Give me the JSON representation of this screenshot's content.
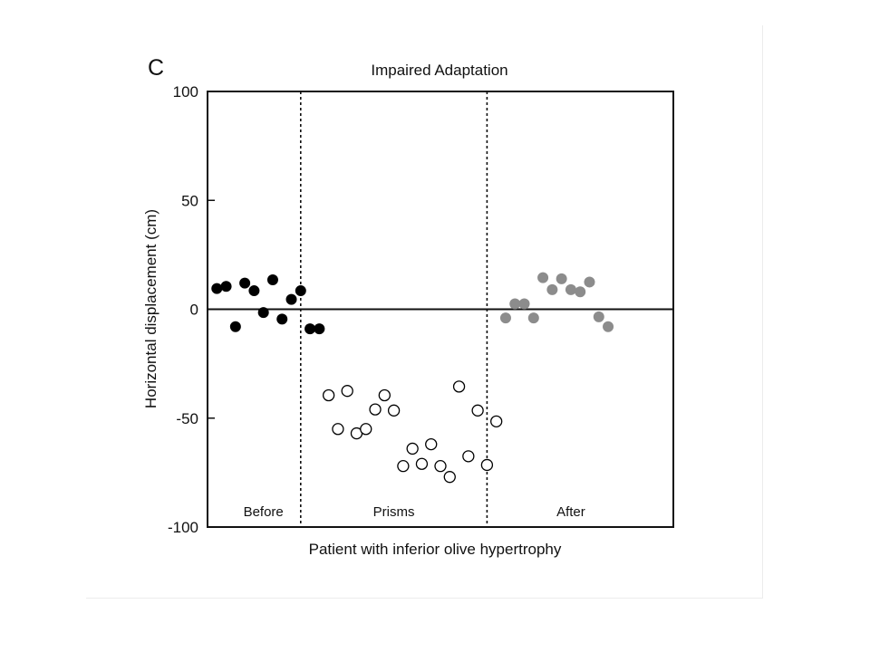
{
  "figure": {
    "panel_letter": "C"
  },
  "chart_data": {
    "type": "scatter",
    "title": "Impaired Adaptation",
    "xlabel": "Patient with inferior olive hypertrophy",
    "ylabel": "Horizontal displacement (cm)",
    "ylim": [
      -100,
      100
    ],
    "yticks": [
      100,
      50,
      0,
      -50,
      -100
    ],
    "ytick_labels": [
      "100",
      "50",
      "0",
      "-50",
      "-100"
    ],
    "xlim": [
      0,
      50
    ],
    "grid": false,
    "reference_line_y": 0,
    "phase_dividers_x": [
      10,
      30
    ],
    "phases": [
      {
        "label": "Before",
        "x_center": 6
      },
      {
        "label": "Prisms",
        "x_center": 20
      },
      {
        "label": "After",
        "x_center": 39
      }
    ],
    "series": [
      {
        "marker": "filled",
        "color": "#000000",
        "points": [
          {
            "trial": 1,
            "y": 9.5
          },
          {
            "trial": 2,
            "y": 10.5
          },
          {
            "trial": 3,
            "y": -8
          },
          {
            "trial": 4,
            "y": 12
          },
          {
            "trial": 5,
            "y": 8.5
          },
          {
            "trial": 6,
            "y": -1.5
          },
          {
            "trial": 7,
            "y": 13.5
          },
          {
            "trial": 8,
            "y": -4.5
          },
          {
            "trial": 9,
            "y": 4.5
          },
          {
            "trial": 10,
            "y": 8.5
          },
          {
            "trial": 11,
            "y": -9
          },
          {
            "trial": 12,
            "y": -9
          }
        ]
      },
      {
        "marker": "open",
        "color": "#000000",
        "points": [
          {
            "trial": 13,
            "y": -39.5
          },
          {
            "trial": 14,
            "y": -55
          },
          {
            "trial": 15,
            "y": -37.5
          },
          {
            "trial": 16,
            "y": -57
          },
          {
            "trial": 17,
            "y": -55
          },
          {
            "trial": 18,
            "y": -46
          },
          {
            "trial": 19,
            "y": -39.5
          },
          {
            "trial": 20,
            "y": -46.5
          },
          {
            "trial": 21,
            "y": -72
          },
          {
            "trial": 22,
            "y": -64
          },
          {
            "trial": 23,
            "y": -71
          },
          {
            "trial": 24,
            "y": -62
          },
          {
            "trial": 25,
            "y": -72
          },
          {
            "trial": 26,
            "y": -77
          },
          {
            "trial": 27,
            "y": -35.5
          },
          {
            "trial": 28,
            "y": -67.5
          },
          {
            "trial": 29,
            "y": -46.5
          },
          {
            "trial": 30,
            "y": -71.5
          },
          {
            "trial": 31,
            "y": -51.5
          }
        ]
      },
      {
        "marker": "filled",
        "color": "#8c8c8c",
        "points": [
          {
            "trial": 32,
            "y": -4
          },
          {
            "trial": 33,
            "y": 2.5
          },
          {
            "trial": 34,
            "y": 2.5
          },
          {
            "trial": 35,
            "y": -4
          },
          {
            "trial": 36,
            "y": 14.5
          },
          {
            "trial": 37,
            "y": 9
          },
          {
            "trial": 38,
            "y": 14
          },
          {
            "trial": 39,
            "y": 9
          },
          {
            "trial": 40,
            "y": 8
          },
          {
            "trial": 41,
            "y": 12.5
          },
          {
            "trial": 42,
            "y": -3.5
          },
          {
            "trial": 43,
            "y": -8
          }
        ]
      }
    ]
  }
}
